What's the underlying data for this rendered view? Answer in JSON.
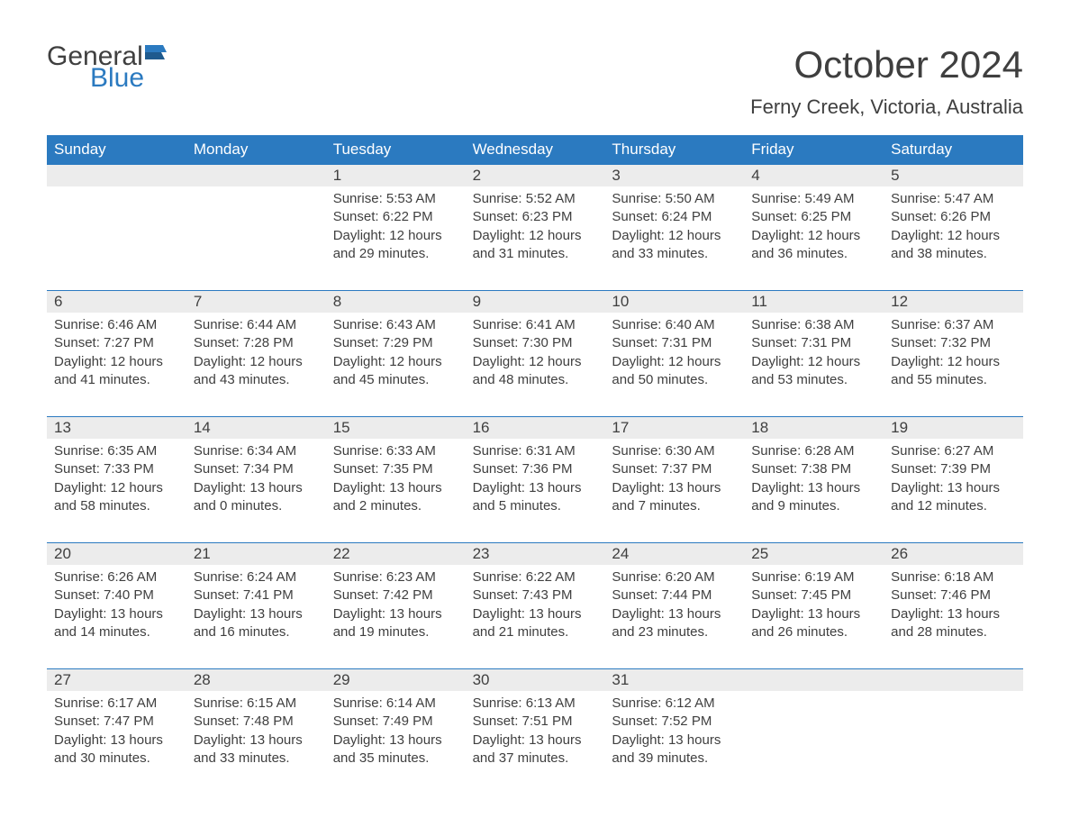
{
  "logo": {
    "word1": "General",
    "word2": "Blue",
    "flag_color": "#2b7ac0",
    "text_color": "#3f3f3f"
  },
  "title": "October 2024",
  "location": "Ferny Creek, Victoria, Australia",
  "colors": {
    "header_bg": "#2b7ac0",
    "header_text": "#ffffff",
    "daynum_bg": "#ececec",
    "daynum_border": "#2b7ac0",
    "body_text": "#3f3f3f",
    "page_bg": "#ffffff"
  },
  "typography": {
    "title_fontsize": 42,
    "location_fontsize": 22,
    "weekday_fontsize": 17,
    "daynum_fontsize": 17,
    "body_fontsize": 15
  },
  "layout": {
    "columns": 7,
    "rows": 5,
    "type": "calendar-table"
  },
  "weekdays": [
    "Sunday",
    "Monday",
    "Tuesday",
    "Wednesday",
    "Thursday",
    "Friday",
    "Saturday"
  ],
  "weeks": [
    [
      {
        "day": "",
        "sunrise": "",
        "sunset": "",
        "daylight1": "",
        "daylight2": ""
      },
      {
        "day": "",
        "sunrise": "",
        "sunset": "",
        "daylight1": "",
        "daylight2": ""
      },
      {
        "day": "1",
        "sunrise": "Sunrise: 5:53 AM",
        "sunset": "Sunset: 6:22 PM",
        "daylight1": "Daylight: 12 hours",
        "daylight2": "and 29 minutes."
      },
      {
        "day": "2",
        "sunrise": "Sunrise: 5:52 AM",
        "sunset": "Sunset: 6:23 PM",
        "daylight1": "Daylight: 12 hours",
        "daylight2": "and 31 minutes."
      },
      {
        "day": "3",
        "sunrise": "Sunrise: 5:50 AM",
        "sunset": "Sunset: 6:24 PM",
        "daylight1": "Daylight: 12 hours",
        "daylight2": "and 33 minutes."
      },
      {
        "day": "4",
        "sunrise": "Sunrise: 5:49 AM",
        "sunset": "Sunset: 6:25 PM",
        "daylight1": "Daylight: 12 hours",
        "daylight2": "and 36 minutes."
      },
      {
        "day": "5",
        "sunrise": "Sunrise: 5:47 AM",
        "sunset": "Sunset: 6:26 PM",
        "daylight1": "Daylight: 12 hours",
        "daylight2": "and 38 minutes."
      }
    ],
    [
      {
        "day": "6",
        "sunrise": "Sunrise: 6:46 AM",
        "sunset": "Sunset: 7:27 PM",
        "daylight1": "Daylight: 12 hours",
        "daylight2": "and 41 minutes."
      },
      {
        "day": "7",
        "sunrise": "Sunrise: 6:44 AM",
        "sunset": "Sunset: 7:28 PM",
        "daylight1": "Daylight: 12 hours",
        "daylight2": "and 43 minutes."
      },
      {
        "day": "8",
        "sunrise": "Sunrise: 6:43 AM",
        "sunset": "Sunset: 7:29 PM",
        "daylight1": "Daylight: 12 hours",
        "daylight2": "and 45 minutes."
      },
      {
        "day": "9",
        "sunrise": "Sunrise: 6:41 AM",
        "sunset": "Sunset: 7:30 PM",
        "daylight1": "Daylight: 12 hours",
        "daylight2": "and 48 minutes."
      },
      {
        "day": "10",
        "sunrise": "Sunrise: 6:40 AM",
        "sunset": "Sunset: 7:31 PM",
        "daylight1": "Daylight: 12 hours",
        "daylight2": "and 50 minutes."
      },
      {
        "day": "11",
        "sunrise": "Sunrise: 6:38 AM",
        "sunset": "Sunset: 7:31 PM",
        "daylight1": "Daylight: 12 hours",
        "daylight2": "and 53 minutes."
      },
      {
        "day": "12",
        "sunrise": "Sunrise: 6:37 AM",
        "sunset": "Sunset: 7:32 PM",
        "daylight1": "Daylight: 12 hours",
        "daylight2": "and 55 minutes."
      }
    ],
    [
      {
        "day": "13",
        "sunrise": "Sunrise: 6:35 AM",
        "sunset": "Sunset: 7:33 PM",
        "daylight1": "Daylight: 12 hours",
        "daylight2": "and 58 minutes."
      },
      {
        "day": "14",
        "sunrise": "Sunrise: 6:34 AM",
        "sunset": "Sunset: 7:34 PM",
        "daylight1": "Daylight: 13 hours",
        "daylight2": "and 0 minutes."
      },
      {
        "day": "15",
        "sunrise": "Sunrise: 6:33 AM",
        "sunset": "Sunset: 7:35 PM",
        "daylight1": "Daylight: 13 hours",
        "daylight2": "and 2 minutes."
      },
      {
        "day": "16",
        "sunrise": "Sunrise: 6:31 AM",
        "sunset": "Sunset: 7:36 PM",
        "daylight1": "Daylight: 13 hours",
        "daylight2": "and 5 minutes."
      },
      {
        "day": "17",
        "sunrise": "Sunrise: 6:30 AM",
        "sunset": "Sunset: 7:37 PM",
        "daylight1": "Daylight: 13 hours",
        "daylight2": "and 7 minutes."
      },
      {
        "day": "18",
        "sunrise": "Sunrise: 6:28 AM",
        "sunset": "Sunset: 7:38 PM",
        "daylight1": "Daylight: 13 hours",
        "daylight2": "and 9 minutes."
      },
      {
        "day": "19",
        "sunrise": "Sunrise: 6:27 AM",
        "sunset": "Sunset: 7:39 PM",
        "daylight1": "Daylight: 13 hours",
        "daylight2": "and 12 minutes."
      }
    ],
    [
      {
        "day": "20",
        "sunrise": "Sunrise: 6:26 AM",
        "sunset": "Sunset: 7:40 PM",
        "daylight1": "Daylight: 13 hours",
        "daylight2": "and 14 minutes."
      },
      {
        "day": "21",
        "sunrise": "Sunrise: 6:24 AM",
        "sunset": "Sunset: 7:41 PM",
        "daylight1": "Daylight: 13 hours",
        "daylight2": "and 16 minutes."
      },
      {
        "day": "22",
        "sunrise": "Sunrise: 6:23 AM",
        "sunset": "Sunset: 7:42 PM",
        "daylight1": "Daylight: 13 hours",
        "daylight2": "and 19 minutes."
      },
      {
        "day": "23",
        "sunrise": "Sunrise: 6:22 AM",
        "sunset": "Sunset: 7:43 PM",
        "daylight1": "Daylight: 13 hours",
        "daylight2": "and 21 minutes."
      },
      {
        "day": "24",
        "sunrise": "Sunrise: 6:20 AM",
        "sunset": "Sunset: 7:44 PM",
        "daylight1": "Daylight: 13 hours",
        "daylight2": "and 23 minutes."
      },
      {
        "day": "25",
        "sunrise": "Sunrise: 6:19 AM",
        "sunset": "Sunset: 7:45 PM",
        "daylight1": "Daylight: 13 hours",
        "daylight2": "and 26 minutes."
      },
      {
        "day": "26",
        "sunrise": "Sunrise: 6:18 AM",
        "sunset": "Sunset: 7:46 PM",
        "daylight1": "Daylight: 13 hours",
        "daylight2": "and 28 minutes."
      }
    ],
    [
      {
        "day": "27",
        "sunrise": "Sunrise: 6:17 AM",
        "sunset": "Sunset: 7:47 PM",
        "daylight1": "Daylight: 13 hours",
        "daylight2": "and 30 minutes."
      },
      {
        "day": "28",
        "sunrise": "Sunrise: 6:15 AM",
        "sunset": "Sunset: 7:48 PM",
        "daylight1": "Daylight: 13 hours",
        "daylight2": "and 33 minutes."
      },
      {
        "day": "29",
        "sunrise": "Sunrise: 6:14 AM",
        "sunset": "Sunset: 7:49 PM",
        "daylight1": "Daylight: 13 hours",
        "daylight2": "and 35 minutes."
      },
      {
        "day": "30",
        "sunrise": "Sunrise: 6:13 AM",
        "sunset": "Sunset: 7:51 PM",
        "daylight1": "Daylight: 13 hours",
        "daylight2": "and 37 minutes."
      },
      {
        "day": "31",
        "sunrise": "Sunrise: 6:12 AM",
        "sunset": "Sunset: 7:52 PM",
        "daylight1": "Daylight: 13 hours",
        "daylight2": "and 39 minutes."
      },
      {
        "day": "",
        "sunrise": "",
        "sunset": "",
        "daylight1": "",
        "daylight2": ""
      },
      {
        "day": "",
        "sunrise": "",
        "sunset": "",
        "daylight1": "",
        "daylight2": ""
      }
    ]
  ]
}
